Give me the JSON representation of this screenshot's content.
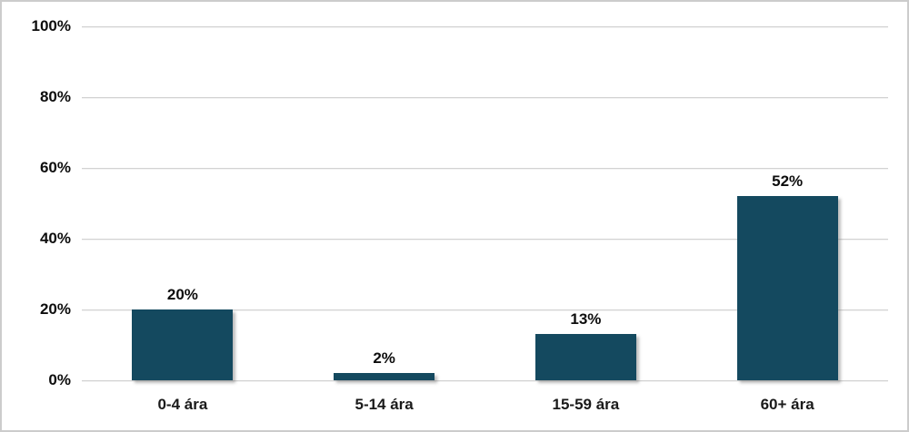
{
  "chart_data": {
    "type": "bar",
    "categories": [
      "0-4 ára",
      "5-14 ára",
      "15-59 ára",
      "60+ ára"
    ],
    "values": [
      20,
      2,
      13,
      52
    ],
    "data_labels": [
      "20%",
      "2%",
      "13%",
      "52%"
    ],
    "title": "",
    "xlabel": "",
    "ylabel": "",
    "ylim": [
      0,
      100
    ],
    "ytick_step": 20,
    "ytick_labels": [
      "0%",
      "20%",
      "40%",
      "60%",
      "80%",
      "100%"
    ],
    "grid": "horizontal",
    "legend": "none"
  },
  "colors": {
    "bar_fill": "#14495f",
    "gridline": "#d2d2d2",
    "tick_label": "#0d0d0d",
    "category_label": "#1a1a1a",
    "background": "#ffffff",
    "frame_border": "#cccccc"
  }
}
